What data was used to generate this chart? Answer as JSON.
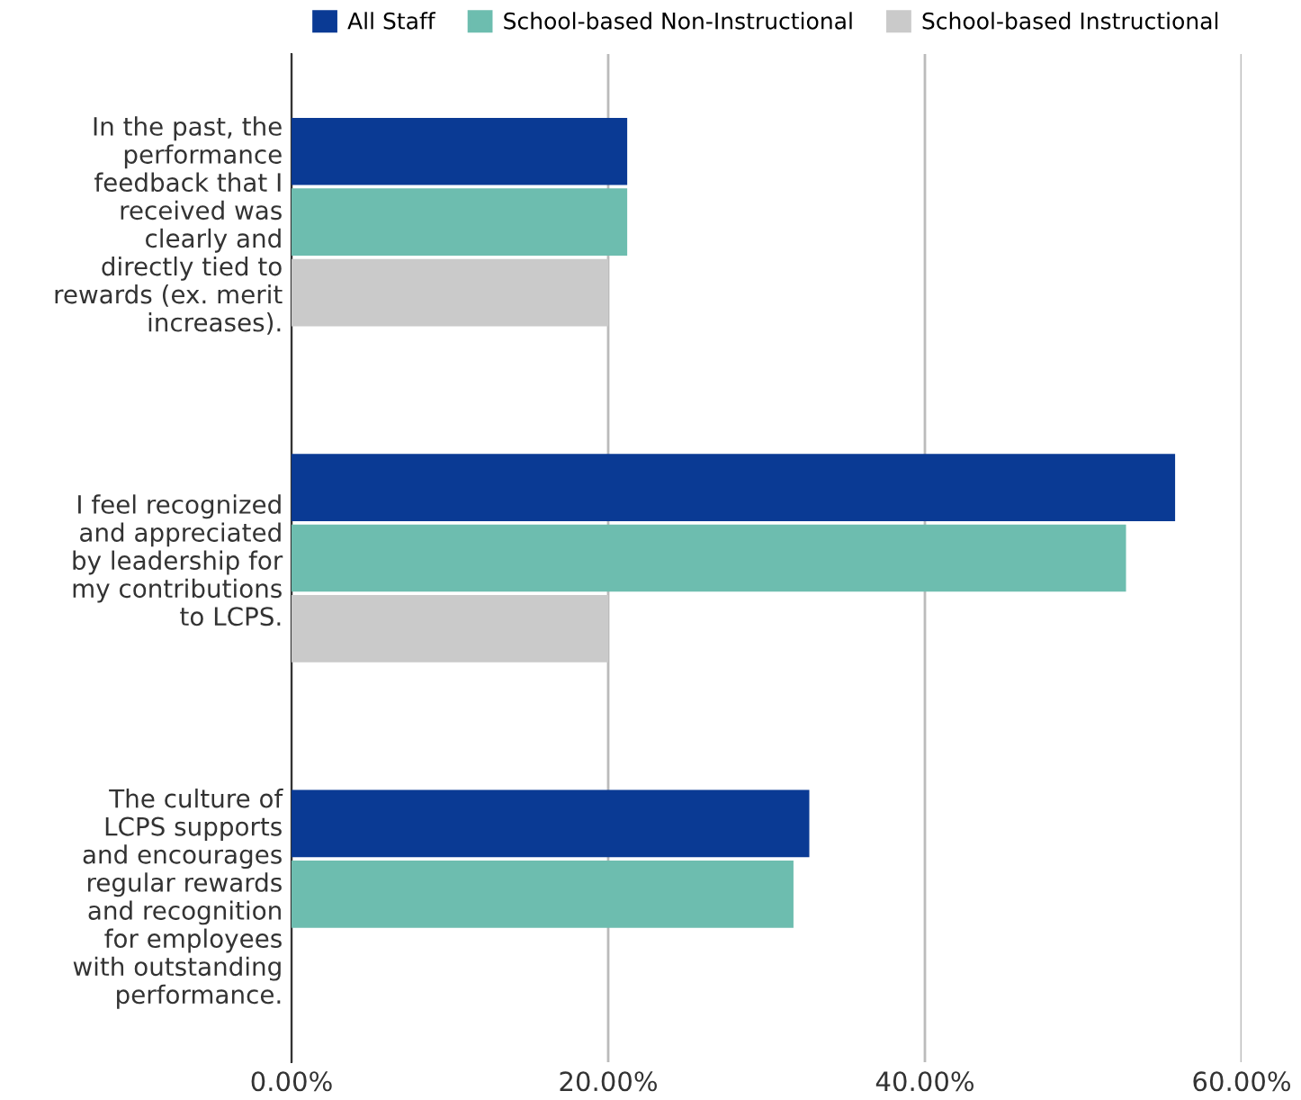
{
  "chart_data": {
    "type": "bar",
    "orientation": "horizontal",
    "categories": [
      "In the past, the\nperformance\nfeedback that I\nreceived was\nclearly and\ndirectly tied to\nrewards (ex. merit\nincreases).",
      "I feel recognized\nand appreciated\nby leadership for\nmy contributions\nto LCPS.",
      "The culture of\nLCPS supports\nand encourages\nregular rewards\nand recognition\nfor employees\nwith outstanding\nperformance."
    ],
    "series": [
      {
        "name": "All Staff",
        "color": "#0a3a94",
        "values": [
          21.2,
          55.8,
          32.7
        ]
      },
      {
        "name": "School-based Non-Instructional",
        "color": "#6dbdaf",
        "values": [
          21.2,
          52.7,
          31.7
        ]
      },
      {
        "name": "School-based Instructional",
        "color": "#cacaca",
        "values": [
          20.0,
          20.0,
          null
        ]
      }
    ],
    "xlim": [
      0,
      60
    ],
    "xticks": [
      {
        "value": 0,
        "label": "0.00%"
      },
      {
        "value": 20,
        "label": "20.00%"
      },
      {
        "value": 40,
        "label": "40.00%"
      },
      {
        "value": 60,
        "label": "60.00%"
      }
    ],
    "grid": "x",
    "legend": "top"
  }
}
